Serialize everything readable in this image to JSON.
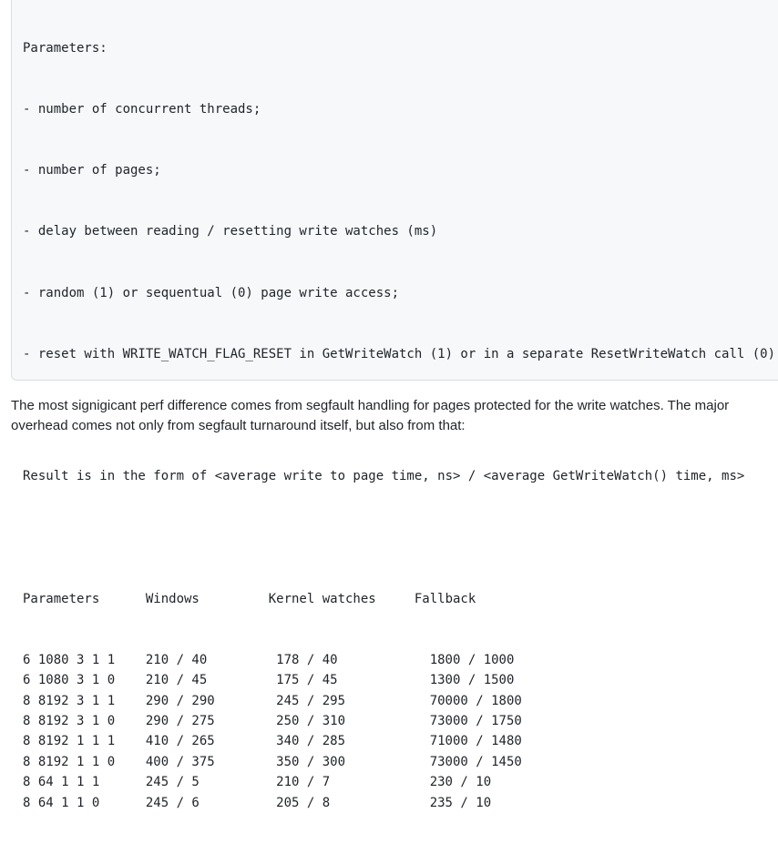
{
  "code_block": {
    "intro_lines": [
      "Parameters:",
      "- number of concurrent threads;",
      "- number of pages;",
      "- delay between reading / resetting write watches (ms)",
      "- random (1) or sequentual (0) page write access;",
      "- reset with WRITE_WATCH_FLAG_RESET in GetWriteWatch (1) or in a separate ResetWriteWatch call (0).",
      "",
      "Result is in the form of <average write to page time, ns> / <average GetWriteWatch() time, ms>",
      ""
    ],
    "table": {
      "headers": [
        "Parameters",
        "Windows",
        "Kernel watches",
        "Fallback"
      ],
      "rows": [
        [
          "6 1080 3 1 1",
          "210 / 40",
          "178 / 40",
          "1800 / 1000"
        ],
        [
          "6 1080 3 1 0",
          "210 / 45",
          "175 / 45",
          "1300 / 1500"
        ],
        [
          "8 8192 3 1 1",
          "290 / 290",
          "245 / 295",
          "70000 / 1800"
        ],
        [
          "8 8192 3 1 0",
          "290 / 275",
          "250 / 310",
          "73000 / 1750"
        ],
        [
          "8 8192 1 1 1",
          "410 / 265",
          "340 / 285",
          "71000 / 1480"
        ],
        [
          "8 8192 1 1 0",
          "400 / 375",
          "350 / 300",
          "73000 / 1450"
        ],
        [
          "8 64 1 1 1",
          "245 / 5",
          "210 / 7",
          "230 / 10"
        ],
        [
          "8 64 1 1 0",
          "245 / 6",
          "205 / 8",
          "235 / 10"
        ]
      ]
    }
  },
  "paragraph": "The most signigicant perf difference comes from segfault handling for pages protected for the write watches. The major overhead comes not only from segfault turnaround itself, but also from that:"
}
